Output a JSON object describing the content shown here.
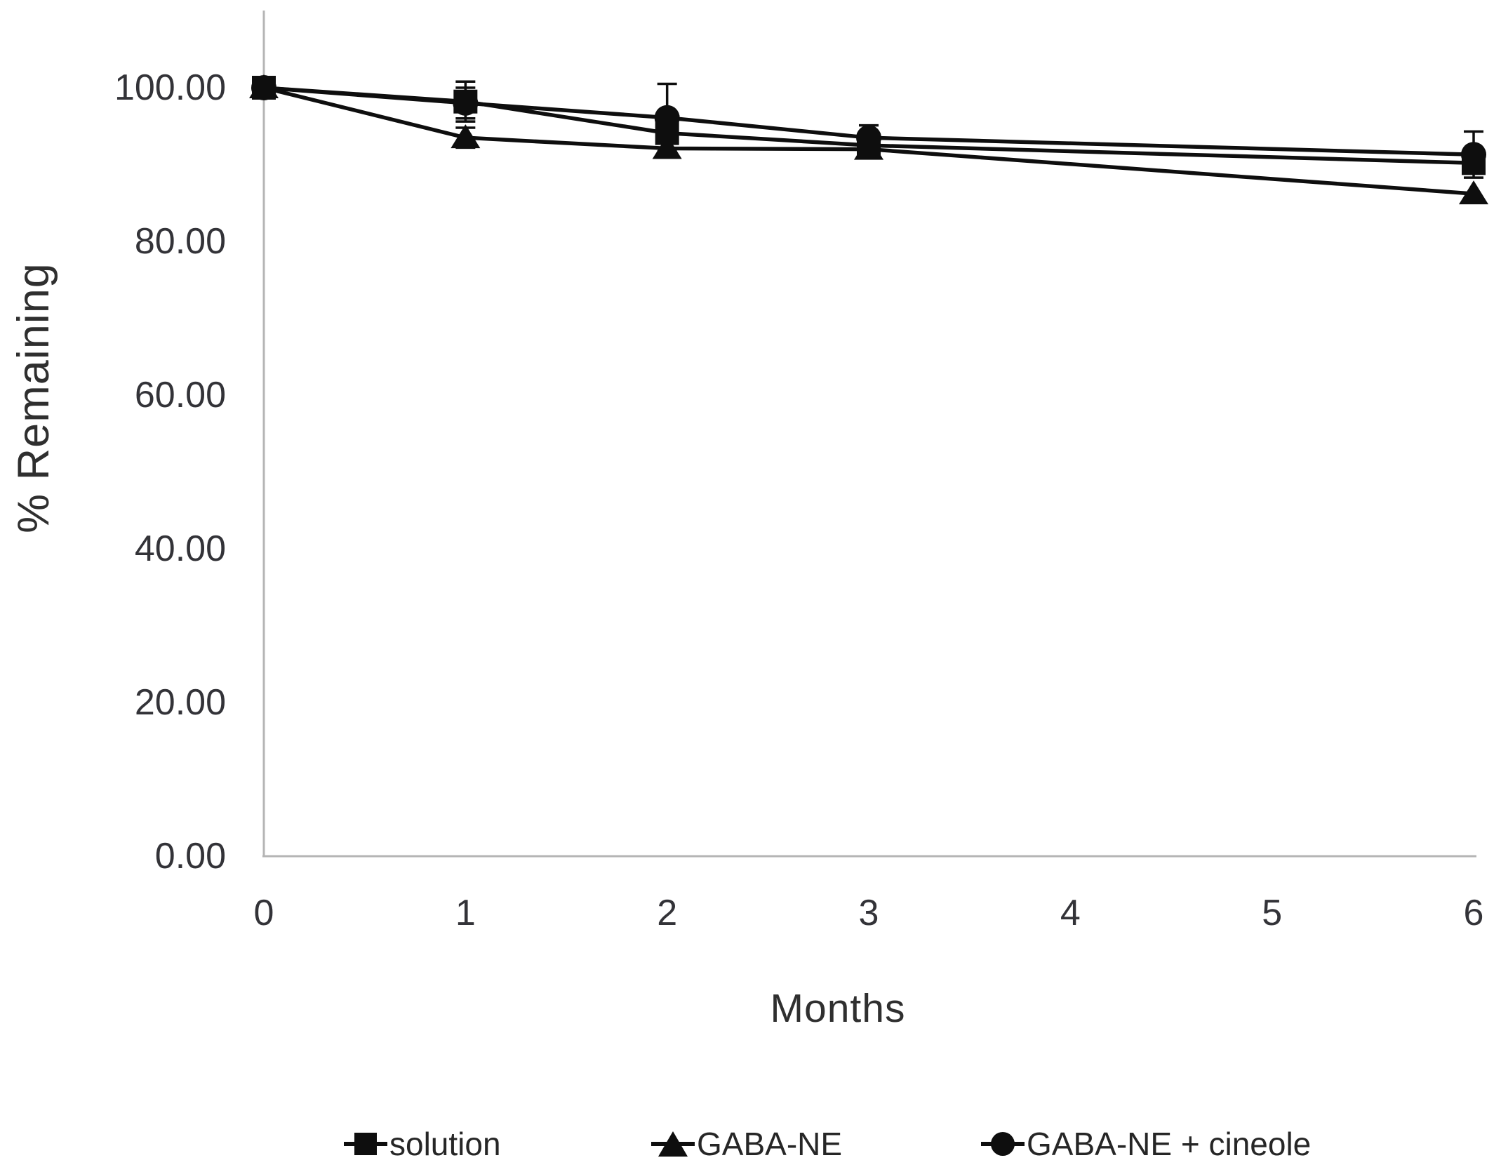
{
  "figure": {
    "background": "#ffffff",
    "axis_color": "#b5b5b5",
    "tick_text_color": "#333338",
    "series_color": "#0e0e0e"
  },
  "chart_data": {
    "type": "line",
    "title": "",
    "xlabel": "Months",
    "ylabel": "% Remaining",
    "xlim": [
      0,
      6
    ],
    "ylim": [
      0,
      100
    ],
    "grid": false,
    "legend_position": "bottom",
    "x": [
      0,
      1,
      2,
      3,
      6
    ],
    "xticks": {
      "values": [
        0,
        1,
        2,
        3,
        4,
        5,
        6
      ],
      "labels": [
        "0",
        "1",
        "2",
        "3",
        "4",
        "5",
        "6"
      ]
    },
    "yticks": {
      "values": [
        0,
        20,
        40,
        60,
        80,
        100
      ],
      "labels": [
        "0.00",
        "20.00",
        "40.00",
        "60.00",
        "80.00",
        "100.00"
      ]
    },
    "series": [
      {
        "name": "solution",
        "marker": "square",
        "values": [
          100.0,
          98.2,
          94.1,
          92.5,
          90.2
        ],
        "errors": [
          0,
          2.6,
          0,
          1.5,
          0
        ]
      },
      {
        "name": "GABA-NE",
        "marker": "triangle",
        "values": [
          100.0,
          93.5,
          92.1,
          92.0,
          86.2
        ],
        "errors": [
          0,
          1.3,
          0,
          0,
          0
        ]
      },
      {
        "name": "GABA-NE + cineole",
        "marker": "circle",
        "values": [
          100.0,
          98.0,
          96.1,
          93.5,
          91.3
        ],
        "errors": [
          0,
          2.0,
          4.4,
          1.6,
          3.0
        ]
      }
    ]
  }
}
